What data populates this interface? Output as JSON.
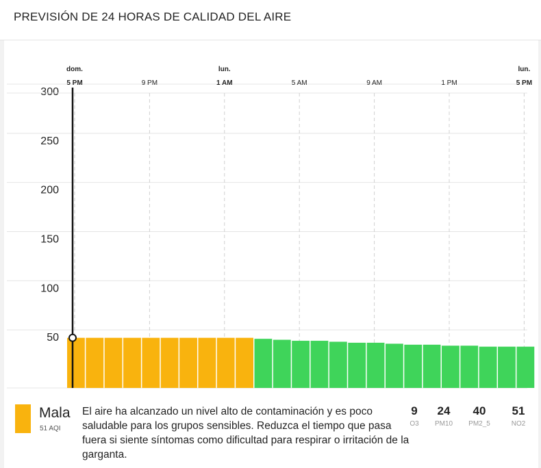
{
  "title": "PREVISIÓN DE 24 HORAS DE CALIDAD DEL AIRE",
  "chart_data": {
    "type": "bar",
    "ylim": [
      0,
      300
    ],
    "yticks": [
      50,
      100,
      150,
      200,
      250,
      300
    ],
    "time_ticks": [
      {
        "day": "dom.",
        "time": "5 PM",
        "bold": true,
        "hour": 0
      },
      {
        "day": "",
        "time": "9 PM",
        "bold": false,
        "hour": 4
      },
      {
        "day": "lun.",
        "time": "1 AM",
        "bold": true,
        "hour": 8
      },
      {
        "day": "",
        "time": "5 AM",
        "bold": false,
        "hour": 12
      },
      {
        "day": "",
        "time": "9 AM",
        "bold": false,
        "hour": 16
      },
      {
        "day": "",
        "time": "1 PM",
        "bold": false,
        "hour": 20
      },
      {
        "day": "lun.",
        "time": "5 PM",
        "bold": true,
        "hour": 24
      }
    ],
    "values": [
      51,
      51,
      51,
      51,
      51,
      51,
      51,
      51,
      51,
      51,
      50,
      49,
      48,
      48,
      47,
      46,
      46,
      45,
      44,
      44,
      43,
      43,
      42,
      42,
      42
    ],
    "colors": {
      "moderate": "#f9b30e",
      "good": "#3fd45a"
    },
    "current_hour": 0,
    "current_value": 51
  },
  "footer": {
    "level": "Mala",
    "aqi": "51 AQI",
    "description": "El aire ha alcanzado un nivel alto de contaminación y es poco saludable para los grupos sensibles. Reduzca el tiempo que pasa fuera si siente síntomas como dificultad para respirar o irritación de la garganta.",
    "pollutants": [
      {
        "value": "9",
        "name": "O3"
      },
      {
        "value": "24",
        "name": "PM10"
      },
      {
        "value": "40",
        "name": "PM2_5"
      },
      {
        "value": "51",
        "name": "NO2"
      }
    ]
  }
}
